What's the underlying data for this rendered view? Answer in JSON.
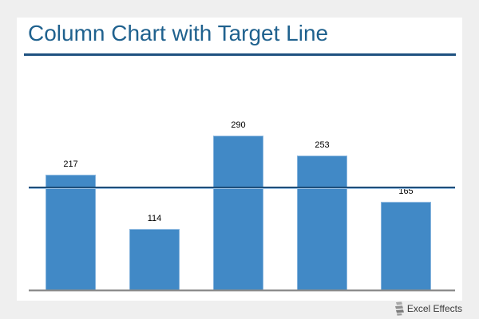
{
  "page": {
    "title": "Column Chart with Target Line"
  },
  "chart_data": {
    "type": "bar",
    "title": "Column Chart with Target Line",
    "values": [
      217,
      114,
      290,
      253,
      165
    ],
    "data_labels": [
      "217",
      "114",
      "290",
      "253",
      "165"
    ],
    "target_line": {
      "value": 193
    },
    "xlabel": "",
    "ylabel": "",
    "x_tick_labels": [],
    "y_tick_labels": [],
    "ylim": [
      0,
      428
    ],
    "gridlines": false,
    "legend": false,
    "axis_visible": "x-baseline-only"
  },
  "colors": {
    "bar_fill": "#4189c6",
    "bar_edge": "#9cc2e5",
    "target_line": "#1f4e79",
    "target_line_highlight": "#9dc3e6",
    "title_text": "#1f618e",
    "title_rule": "#1e5180",
    "axis_line": "#8c8c8c",
    "card_background": "#ffffff",
    "page_background": "#efefef",
    "label_text": "#000000"
  },
  "footer": {
    "brand": "Excel Effects"
  }
}
